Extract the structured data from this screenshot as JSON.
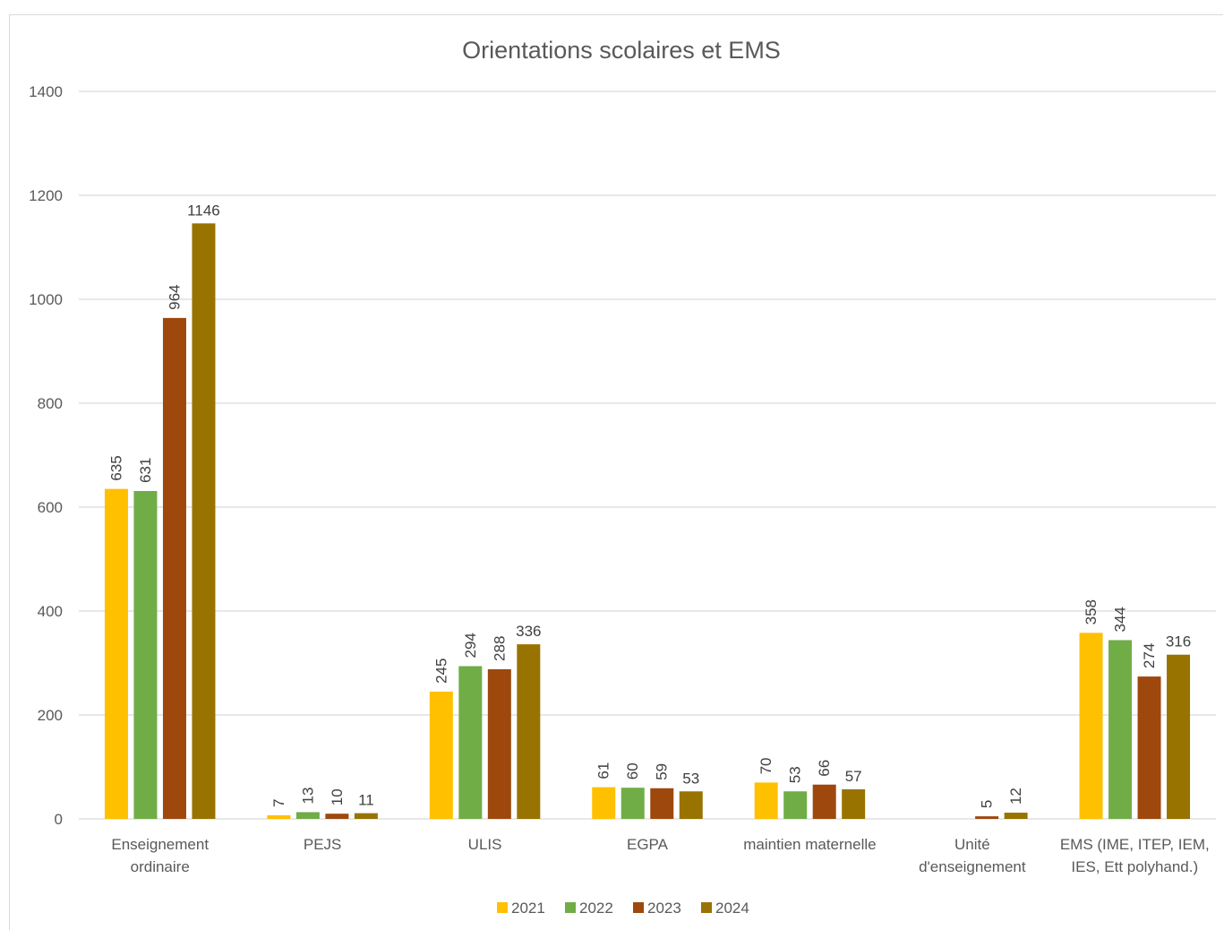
{
  "chart_data": {
    "type": "bar",
    "title": "Orientations scolaires et EMS",
    "xlabel": "",
    "ylabel": "",
    "ylim": [
      0,
      1400
    ],
    "yticks": [
      0,
      200,
      400,
      600,
      800,
      1000,
      1200,
      1400
    ],
    "grid": true,
    "legend_position": "bottom",
    "categories": [
      [
        "Enseignement",
        "ordinaire"
      ],
      [
        "PEJS"
      ],
      [
        "ULIS"
      ],
      [
        "EGPA"
      ],
      [
        "maintien maternelle"
      ],
      [
        "Unité",
        "d'enseignement"
      ],
      [
        "EMS (IME, ITEP, IEM,",
        "IES, Ett polyhand.)"
      ]
    ],
    "series": [
      {
        "name": "2021",
        "color": "#FFC000",
        "values": [
          635,
          7,
          245,
          61,
          70,
          null,
          358
        ]
      },
      {
        "name": "2022",
        "color": "#70AD47",
        "values": [
          631,
          13,
          294,
          60,
          53,
          null,
          344
        ]
      },
      {
        "name": "2023",
        "color": "#9E480E",
        "values": [
          964,
          10,
          288,
          59,
          66,
          5,
          274
        ]
      },
      {
        "name": "2024",
        "color": "#997300",
        "values": [
          1146,
          11,
          336,
          53,
          57,
          12,
          316
        ]
      }
    ]
  }
}
